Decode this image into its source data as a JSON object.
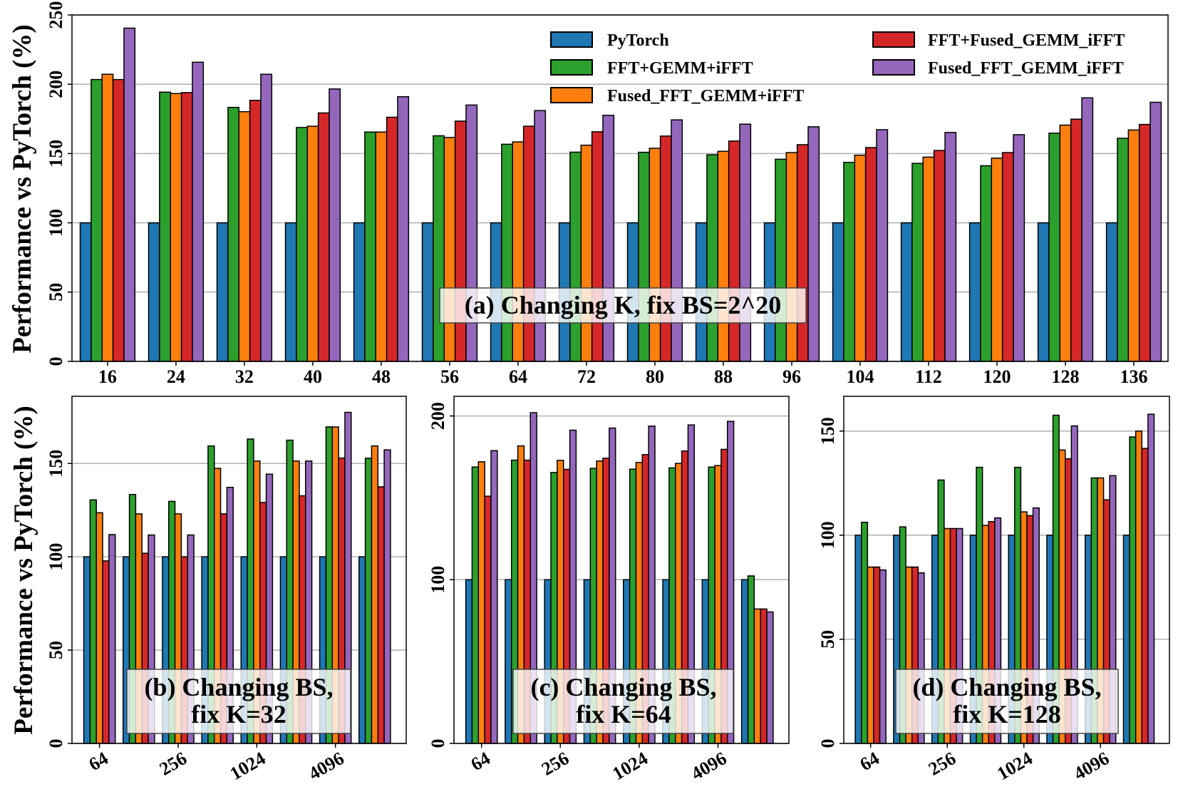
{
  "colors": {
    "PyTorch": "#1f77b4",
    "FFT+GEMM+iFFT": "#2ca02c",
    "Fused_FFT_GEMM+iFFT": "#ff7f0e",
    "FFT+Fused_GEMM_iFFT": "#d62728",
    "Fused_FFT_GEMM_iFFT": "#9467bd"
  },
  "legend": [
    "PyTorch",
    "FFT+GEMM+iFFT",
    "Fused_FFT_GEMM+iFFT",
    "FFT+Fused_GEMM_iFFT",
    "Fused_FFT_GEMM_iFFT"
  ],
  "chart_data": [
    {
      "type": "bar",
      "panel": "a",
      "title": "(a) Changing K, fix BS=2^20",
      "ylabel": "Performance vs PyTorch (%)",
      "xlabel": "",
      "ylim": [
        0,
        250
      ],
      "yticks": [
        0,
        50,
        100,
        150,
        200,
        250
      ],
      "grid": "y",
      "legend": "top-right",
      "categories": [
        "16",
        "24",
        "32",
        "40",
        "48",
        "56",
        "64",
        "72",
        "80",
        "88",
        "96",
        "104",
        "112",
        "120",
        "128",
        "136"
      ],
      "tick_labels": [
        "16",
        "24",
        "32",
        "40",
        "48",
        "56",
        "64",
        "72",
        "80",
        "88",
        "96",
        "104",
        "112",
        "120",
        "128",
        "136"
      ],
      "series": [
        {
          "name": "PyTorch",
          "values": [
            100,
            100,
            100,
            100,
            100,
            100,
            100,
            100,
            100,
            100,
            100,
            100,
            100,
            100,
            100,
            100
          ]
        },
        {
          "name": "FFT+GEMM+iFFT",
          "values": [
            203.4,
            194.3,
            183.3,
            168.8,
            165.5,
            162.8,
            156.7,
            151,
            150.9,
            149.1,
            145.9,
            143.6,
            142.9,
            141.2,
            164.7,
            161
          ]
        },
        {
          "name": "Fused_FFT_GEMM+iFFT",
          "values": [
            207.2,
            193.3,
            180.2,
            169.7,
            165.5,
            161.6,
            158.4,
            156,
            153.8,
            151.6,
            150.7,
            148.8,
            147.4,
            146.7,
            170.5,
            167
          ]
        },
        {
          "name": "FFT+Fused_GEMM_iFFT",
          "values": [
            203.4,
            194,
            188.4,
            179.3,
            176.2,
            173.4,
            169.7,
            165.7,
            162.6,
            159,
            156.4,
            154.3,
            152.2,
            150.7,
            174.8,
            171
          ]
        },
        {
          "name": "Fused_FFT_GEMM_iFFT",
          "values": [
            240.5,
            215.9,
            207.2,
            196.6,
            191,
            185,
            181,
            177.6,
            174.3,
            171.2,
            169.3,
            167.2,
            165.2,
            163.6,
            190.2,
            187
          ]
        }
      ]
    },
    {
      "type": "bar",
      "panel": "b",
      "title": "(b) Changing BS,",
      "title2": "fix K=32",
      "ylabel": "Performance vs PyTorch (%)",
      "xlabel": "",
      "ylim": [
        0,
        186
      ],
      "yticks": [
        0,
        50,
        100,
        150
      ],
      "grid": "y",
      "categories": [
        "64",
        "",
        "256",
        "",
        "1024",
        "",
        "4096",
        ""
      ],
      "tick_labels": [
        "64",
        "",
        "256",
        "",
        "1024",
        "",
        "4096",
        ""
      ],
      "series": [
        {
          "name": "PyTorch",
          "values": [
            100,
            100,
            100,
            100,
            100,
            100,
            100,
            100
          ]
        },
        {
          "name": "FFT+GEMM+iFFT",
          "values": [
            130.5,
            133.4,
            129.7,
            159.4,
            163.1,
            162.5,
            169.6,
            152.8
          ]
        },
        {
          "name": "Fused_FFT_GEMM+iFFT",
          "values": [
            123.6,
            123,
            123,
            147.4,
            151.3,
            151.3,
            169.6,
            159.4
          ]
        },
        {
          "name": "FFT+Fused_GEMM_iFFT",
          "values": [
            97.8,
            101.9,
            100,
            123,
            129.1,
            132.7,
            152.9,
            137.5
          ]
        },
        {
          "name": "Fused_FFT_GEMM_iFFT",
          "values": [
            111.9,
            111.7,
            111.7,
            137.2,
            144.3,
            151.3,
            177.4,
            157.3
          ]
        }
      ]
    },
    {
      "type": "bar",
      "panel": "c",
      "title": "(c) Changing BS,",
      "title2": "fix K=64",
      "ylabel": "",
      "xlabel": "",
      "ylim": [
        0,
        212
      ],
      "yticks": [
        0,
        100,
        200
      ],
      "grid": "y",
      "categories": [
        "64",
        "",
        "256",
        "",
        "1024",
        "",
        "4096",
        ""
      ],
      "tick_labels": [
        "64",
        "",
        "256",
        "",
        "1024",
        "",
        "4096",
        ""
      ],
      "series": [
        {
          "name": "PyTorch",
          "values": [
            100,
            100,
            100,
            100,
            100,
            100,
            100,
            100
          ]
        },
        {
          "name": "FFT+GEMM+iFFT",
          "values": [
            168.8,
            173,
            165.5,
            168,
            167.5,
            168.3,
            168.8,
            102.3
          ]
        },
        {
          "name": "Fused_FFT_GEMM+iFFT",
          "values": [
            172,
            181.7,
            172.9,
            172.5,
            171.6,
            171,
            169.7,
            82.1
          ]
        },
        {
          "name": "FFT+Fused_GEMM_iFFT",
          "values": [
            151,
            173,
            167.4,
            174.2,
            176.4,
            178.6,
            179.6,
            82.1
          ]
        },
        {
          "name": "Fused_FFT_GEMM_iFFT",
          "values": [
            178.8,
            202,
            191.3,
            192.6,
            193.8,
            194.5,
            196.7,
            80.3
          ]
        }
      ]
    },
    {
      "type": "bar",
      "panel": "d",
      "title": "(d) Changing BS,",
      "title2": "fix K=128",
      "ylabel": "",
      "xlabel": "",
      "ylim": [
        0,
        166.7
      ],
      "yticks": [
        0,
        50,
        100,
        150
      ],
      "grid": "y",
      "categories": [
        "64",
        "",
        "256",
        "",
        "1024",
        "",
        "4096",
        ""
      ],
      "tick_labels": [
        "64",
        "",
        "256",
        "",
        "1024",
        "",
        "4096",
        ""
      ],
      "series": [
        {
          "name": "PyTorch",
          "values": [
            100,
            100,
            100,
            100,
            100,
            100,
            100,
            100
          ]
        },
        {
          "name": "FFT+GEMM+iFFT",
          "values": [
            106.2,
            104,
            126.5,
            132.6,
            132.6,
            157.6,
            127.5,
            147.2
          ]
        },
        {
          "name": "Fused_FFT_GEMM+iFFT",
          "values": [
            84.7,
            84.7,
            103.2,
            104.7,
            111.2,
            140.9,
            127.5,
            150
          ]
        },
        {
          "name": "FFT+Fused_GEMM_iFFT",
          "values": [
            84.7,
            84.7,
            103.2,
            106.5,
            109.4,
            136.7,
            117,
            141.7
          ]
        },
        {
          "name": "Fused_FFT_GEMM_iFFT",
          "values": [
            83.3,
            81.9,
            103.2,
            108.3,
            113.1,
            152.5,
            128.6,
            158.1
          ]
        }
      ]
    }
  ]
}
